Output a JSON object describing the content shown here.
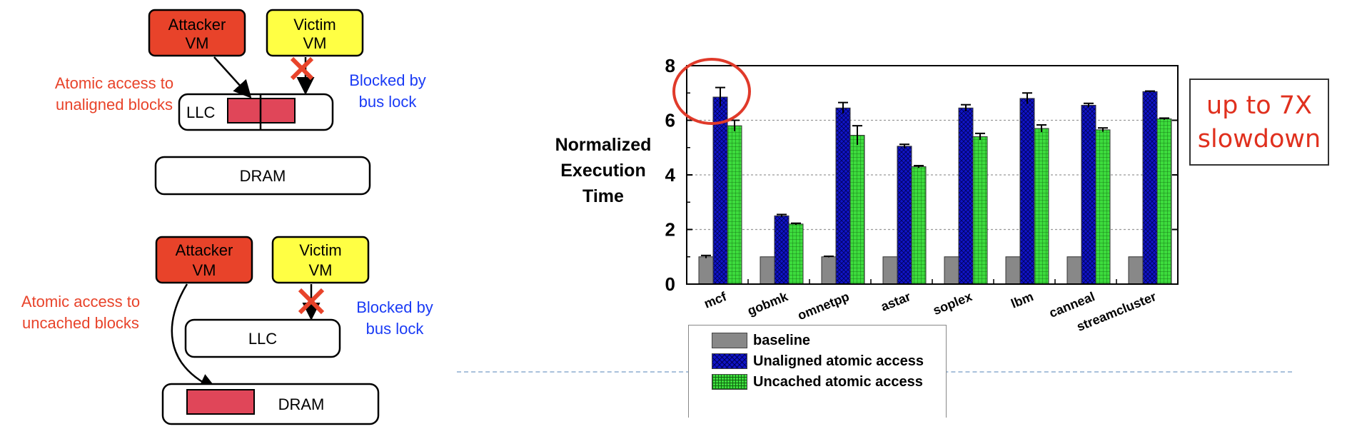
{
  "diagram": {
    "top": {
      "attacker_vm": [
        "Attacker",
        "VM"
      ],
      "victim_vm": [
        "Victim",
        "VM"
      ],
      "left_note": [
        "Atomic access to",
        "unaligned blocks"
      ],
      "right_note": [
        "Blocked by",
        "bus lock"
      ],
      "llc_label": "LLC",
      "dram_label": "DRAM"
    },
    "bottom": {
      "attacker_vm": [
        "Attacker",
        "VM"
      ],
      "victim_vm": [
        "Victim",
        "VM"
      ],
      "left_note": [
        "Atomic access to",
        "uncached blocks"
      ],
      "right_note": [
        "Blocked by",
        "bus lock"
      ],
      "llc_label": "LLC",
      "dram_label": "DRAM"
    },
    "colors": {
      "attacker": "#e8432a",
      "victim": "#ffff44",
      "block": "#e04659",
      "note_left": "#e8432a",
      "note_right": "#1a3bf5",
      "cross": "#e8432a"
    }
  },
  "callout": [
    "up to 7X",
    "slowdown"
  ],
  "chart_data": {
    "type": "bar",
    "ylabel": [
      "Normalized",
      "Execution",
      "Time"
    ],
    "ylim": [
      0,
      8
    ],
    "yticks": [
      0,
      2,
      4,
      6,
      8
    ],
    "grid": true,
    "categories": [
      "mcf",
      "gobmk",
      "omnetpp",
      "astar",
      "soplex",
      "lbm",
      "canneal",
      "streamcluster"
    ],
    "series": [
      {
        "name": "baseline",
        "color": "#888888",
        "values": [
          1.0,
          1.0,
          1.0,
          1.0,
          1.0,
          1.0,
          1.0,
          1.0
        ],
        "errors": [
          0.05,
          0,
          0.02,
          0,
          0,
          0,
          0,
          0
        ]
      },
      {
        "name": "Unaligned atomic access",
        "color": "#1014c8",
        "values": [
          6.85,
          2.5,
          6.45,
          5.05,
          6.45,
          6.8,
          6.55,
          7.05
        ],
        "errors": [
          0.35,
          0.05,
          0.2,
          0.07,
          0.12,
          0.2,
          0.07,
          0.02
        ]
      },
      {
        "name": "Uncached atomic access",
        "color": "#3ddc3d",
        "values": [
          5.8,
          2.2,
          5.45,
          4.3,
          5.4,
          5.7,
          5.65,
          6.05
        ],
        "errors": [
          0.2,
          0.03,
          0.35,
          0.04,
          0.12,
          0.13,
          0.07,
          0.03
        ]
      }
    ],
    "legend_position": "bottom",
    "highlight": "mcf"
  }
}
